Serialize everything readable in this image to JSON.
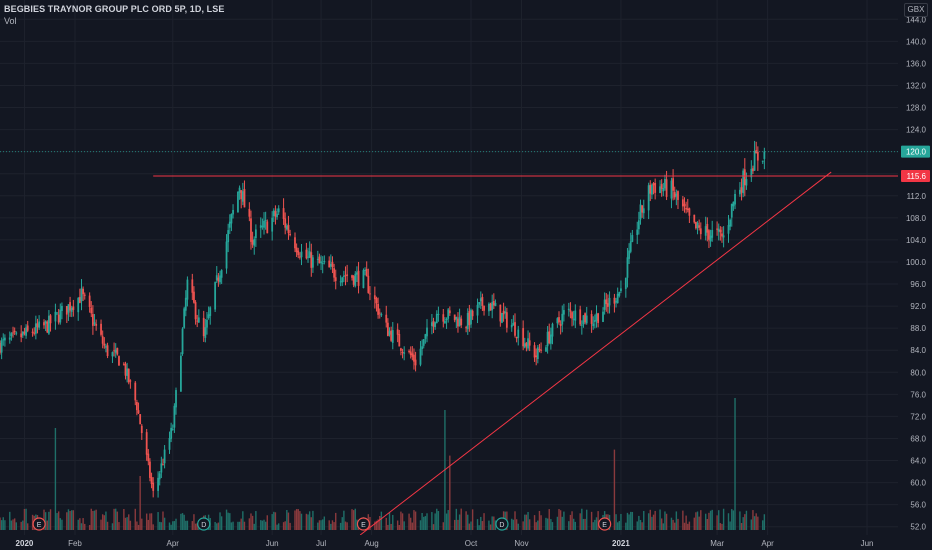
{
  "header": {
    "title": "BEGBIES TRAYNOR GROUP PLC ORD 5P, 1D, LSE",
    "volume_label": "Vol",
    "currency": "GBX"
  },
  "colors": {
    "background": "#131722",
    "up": "#26a69a",
    "down": "#ef5350",
    "line": "#f23645",
    "grid": "#1e222d"
  },
  "price_axis": {
    "ticks": [
      "52.0",
      "56.0",
      "60.0",
      "64.0",
      "68.0",
      "72.0",
      "76.0",
      "80.0",
      "84.0",
      "88.0",
      "92.0",
      "96.0",
      "100.0",
      "104.0",
      "108.0",
      "112.0",
      "116.0",
      "120.0",
      "124.0",
      "128.0",
      "132.0",
      "136.0",
      "140.0",
      "144.0"
    ],
    "last_price": "120.0",
    "level_price": "115.6"
  },
  "time_axis": {
    "labels": [
      "2020",
      "Feb",
      "Apr",
      "Jun",
      "Jul",
      "Aug",
      "Oct",
      "Nov",
      "2021",
      "Mar",
      "Apr",
      "Jun"
    ]
  },
  "events": [
    "E",
    "D",
    "E",
    "D",
    "E"
  ],
  "chart_data": {
    "type": "candlestick",
    "title": "BEGBIES TRAYNOR GROUP PLC ORD 5P, 1D, LSE",
    "unit": "GBX",
    "ylim": [
      50.5,
      147.5
    ],
    "x_range": [
      "2019-12-17",
      "2021-06-20"
    ],
    "horizontal_level": 115.6,
    "last_price": 120.0,
    "trendline": [
      {
        "x": "2020-07-25",
        "y": 50.5
      },
      {
        "x": "2021-05-10",
        "y": 116.3
      }
    ],
    "key_points": [
      {
        "x": "2019-12-17",
        "y": 85.0
      },
      {
        "x": "2020-01-15",
        "y": 88.5
      },
      {
        "x": "2020-02-05",
        "y": 94.0
      },
      {
        "x": "2020-02-20",
        "y": 84.0
      },
      {
        "x": "2020-03-01",
        "y": 82.0
      },
      {
        "x": "2020-03-10",
        "y": 74.0
      },
      {
        "x": "2020-03-20",
        "y": 58.0
      },
      {
        "x": "2020-04-01",
        "y": 70.0
      },
      {
        "x": "2020-04-10",
        "y": 96.0
      },
      {
        "x": "2020-04-20",
        "y": 86.0
      },
      {
        "x": "2020-05-01",
        "y": 100.0
      },
      {
        "x": "2020-05-12",
        "y": 114.0
      },
      {
        "x": "2020-05-20",
        "y": 104.0
      },
      {
        "x": "2020-06-05",
        "y": 109.0
      },
      {
        "x": "2020-06-20",
        "y": 101.0
      },
      {
        "x": "2020-07-10",
        "y": 98.0
      },
      {
        "x": "2020-07-28",
        "y": 97.0
      },
      {
        "x": "2020-08-10",
        "y": 88.0
      },
      {
        "x": "2020-08-28",
        "y": 82.0
      },
      {
        "x": "2020-09-10",
        "y": 91.0
      },
      {
        "x": "2020-09-28",
        "y": 89.0
      },
      {
        "x": "2020-10-10",
        "y": 93.0
      },
      {
        "x": "2020-10-28",
        "y": 88.0
      },
      {
        "x": "2020-11-10",
        "y": 83.0
      },
      {
        "x": "2020-11-28",
        "y": 91.0
      },
      {
        "x": "2020-12-15",
        "y": 89.5
      },
      {
        "x": "2021-01-01",
        "y": 95.0
      },
      {
        "x": "2021-01-12",
        "y": 108.0
      },
      {
        "x": "2021-01-20",
        "y": 114.0
      },
      {
        "x": "2021-02-01",
        "y": 113.0
      },
      {
        "x": "2021-02-15",
        "y": 106.0
      },
      {
        "x": "2021-03-05",
        "y": 104.5
      },
      {
        "x": "2021-03-12",
        "y": 112.0
      },
      {
        "x": "2021-03-22",
        "y": 118.0
      },
      {
        "x": "2021-03-30",
        "y": 120.0
      }
    ],
    "volume_spikes": [
      {
        "x": "2020-01-20",
        "level": 0.85
      },
      {
        "x": "2020-03-12",
        "level": 0.45
      },
      {
        "x": "2020-09-15",
        "level": 1.0
      },
      {
        "x": "2020-09-18",
        "level": 0.62
      },
      {
        "x": "2020-12-28",
        "level": 0.67
      },
      {
        "x": "2021-03-12",
        "level": 1.1
      }
    ],
    "event_markers": [
      {
        "x": "2020-01-10",
        "label": "E"
      },
      {
        "x": "2020-04-20",
        "label": "D"
      },
      {
        "x": "2020-07-27",
        "label": "E"
      },
      {
        "x": "2020-10-20",
        "label": "D"
      },
      {
        "x": "2020-12-22",
        "label": "E"
      }
    ]
  }
}
